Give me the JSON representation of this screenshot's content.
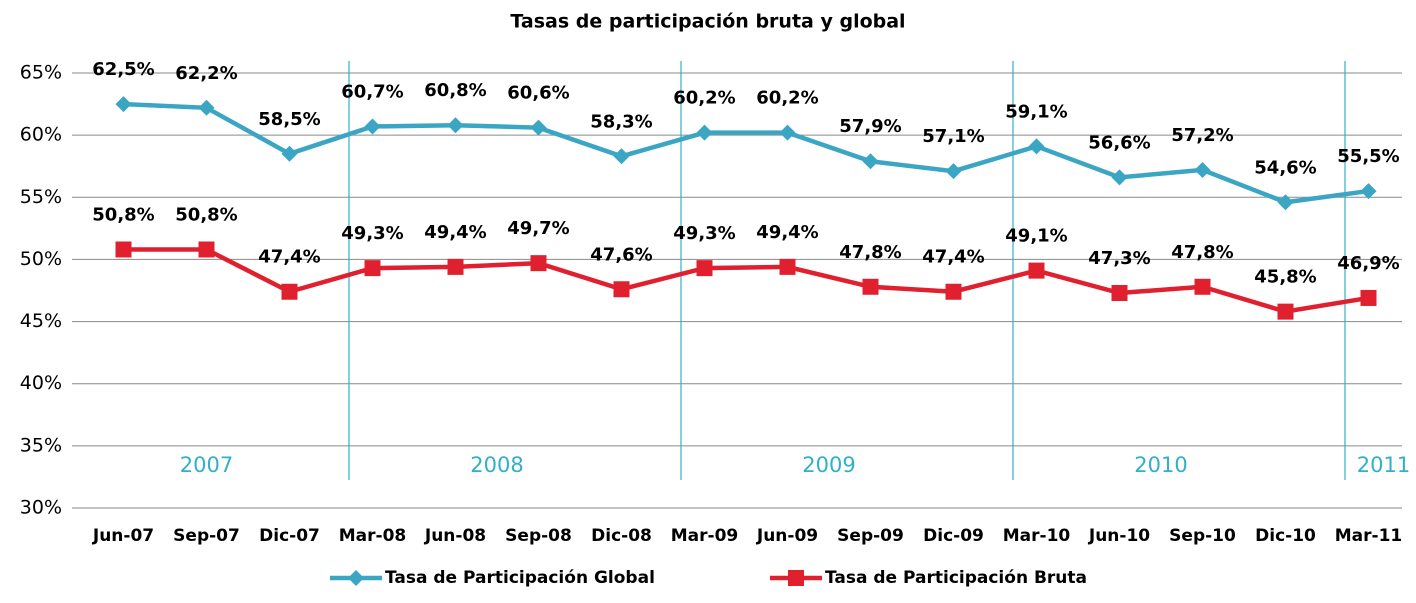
{
  "chart_data": {
    "type": "line",
    "title": "Tasas de participación bruta y global",
    "categories": [
      "Jun-07",
      "Sep-07",
      "Dic-07",
      "Mar-08",
      "Jun-08",
      "Sep-08",
      "Dic-08",
      "Mar-09",
      "Jun-09",
      "Sep-09",
      "Dic-09",
      "Mar-10",
      "Jun-10",
      "Sep-10",
      "Dic-10",
      "Mar-11"
    ],
    "series": [
      {
        "name": "Tasa de Participación Global",
        "color": "#3aa6c4",
        "marker": "diamond",
        "values": [
          62.5,
          62.2,
          58.5,
          60.7,
          60.8,
          60.6,
          58.3,
          60.2,
          60.2,
          57.9,
          57.1,
          59.1,
          56.6,
          57.2,
          54.6,
          55.5
        ],
        "value_labels": [
          "62,5%",
          "62,2%",
          "58,5%",
          "60,7%",
          "60,8%",
          "60,6%",
          "58,3%",
          "60,2%",
          "60,2%",
          "57,9%",
          "57,1%",
          "59,1%",
          "56,6%",
          "57,2%",
          "54,6%",
          "55,5%"
        ]
      },
      {
        "name": "Tasa de Participación Bruta",
        "color": "#e0202e",
        "marker": "square",
        "values": [
          50.8,
          50.8,
          47.4,
          49.3,
          49.4,
          49.7,
          47.6,
          49.3,
          49.4,
          47.8,
          47.4,
          49.1,
          47.3,
          47.8,
          45.8,
          46.9
        ],
        "value_labels": [
          "50,8%",
          "50,8%",
          "47,4%",
          "49,3%",
          "49,4%",
          "49,7%",
          "47,6%",
          "49,3%",
          "49,4%",
          "47,8%",
          "47,4%",
          "49,1%",
          "47,3%",
          "47,8%",
          "45,8%",
          "46,9%"
        ]
      }
    ],
    "annotations": [
      "2007",
      "2008",
      "2009",
      "2010",
      "2011"
    ],
    "ylim": [
      30,
      65
    ],
    "yticks": [
      {
        "value": 30,
        "label": "30%"
      },
      {
        "value": 35,
        "label": "35%"
      },
      {
        "value": 40,
        "label": "40%"
      },
      {
        "value": 45,
        "label": "45%"
      },
      {
        "value": 50,
        "label": "50%"
      },
      {
        "value": 55,
        "label": "55%"
      },
      {
        "value": 60,
        "label": "60%"
      },
      {
        "value": 65,
        "label": "65%"
      }
    ],
    "grid": true,
    "legend": "bottom"
  }
}
